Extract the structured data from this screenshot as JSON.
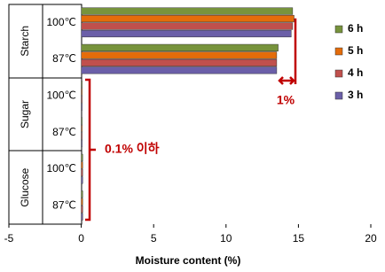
{
  "chart_data": {
    "type": "hbar",
    "categories": [
      "100℃",
      "87℃",
      "100℃",
      "87℃",
      "100℃",
      "87℃"
    ],
    "groups": [
      "Starch",
      "Sugar",
      "Glucose"
    ],
    "series": [
      {
        "name": "6 h",
        "color": "#77933c",
        "values": [
          14.6,
          13.6,
          0.05,
          0.05,
          0.1,
          0.1
        ]
      },
      {
        "name": "5 h",
        "color": "#e46c0a",
        "values": [
          14.7,
          13.5,
          0.05,
          0.05,
          0.1,
          0.1
        ]
      },
      {
        "name": "4 h",
        "color": "#c0504d",
        "values": [
          14.6,
          13.5,
          0.05,
          0.05,
          0.1,
          0.1
        ]
      },
      {
        "name": "3 h",
        "color": "#6b5fa8",
        "values": [
          14.5,
          13.5,
          0.05,
          0.05,
          0.1,
          0.1
        ]
      }
    ],
    "xlim": [
      -5,
      20
    ],
    "xticks": [
      -5,
      0,
      5,
      10,
      15,
      20
    ],
    "xlabel": "Moisture content (%)",
    "annotations": [
      "1%",
      "0.1% 이하"
    ]
  }
}
